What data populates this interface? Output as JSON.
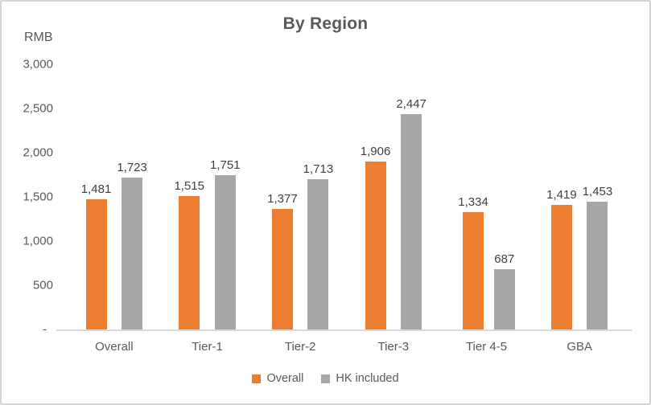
{
  "chart_data": {
    "type": "bar",
    "title": "By Region",
    "unit_label": "RMB",
    "categories": [
      "Overall",
      "Tier-1",
      "Tier-2",
      "Tier-3",
      "Tier 4-5",
      "GBA"
    ],
    "series": [
      {
        "name": "Overall",
        "color": "#ED7D31",
        "values": [
          1481,
          1515,
          1377,
          1906,
          1334,
          1419
        ],
        "value_labels": [
          "1,481",
          "1,515",
          "1,377",
          "1,906",
          "1,334",
          "1,419"
        ]
      },
      {
        "name": "HK included",
        "color": "#A6A6A6",
        "values": [
          1723,
          1751,
          1713,
          2447,
          687,
          1453
        ],
        "value_labels": [
          "1,723",
          "1,751",
          "1,713",
          "2,447",
          "687",
          "1,453"
        ]
      }
    ],
    "ylim": [
      0,
      3000
    ],
    "yticks": [
      {
        "value": 3000,
        "label": "3,000"
      },
      {
        "value": 2500,
        "label": "2,500"
      },
      {
        "value": 2000,
        "label": "2,000"
      },
      {
        "value": 1500,
        "label": "1,500"
      },
      {
        "value": 1000,
        "label": "1,000"
      },
      {
        "value": 500,
        "label": "500"
      },
      {
        "value": 0,
        "label": "-"
      }
    ],
    "grid": false,
    "legend_position": "bottom",
    "colors": {
      "title": "#595959",
      "axis_text": "#595959",
      "data_label": "#404040",
      "axis_line": "#D9D9D9",
      "frame_border": "#D4D4D4",
      "background": "#FFFFFF"
    }
  }
}
